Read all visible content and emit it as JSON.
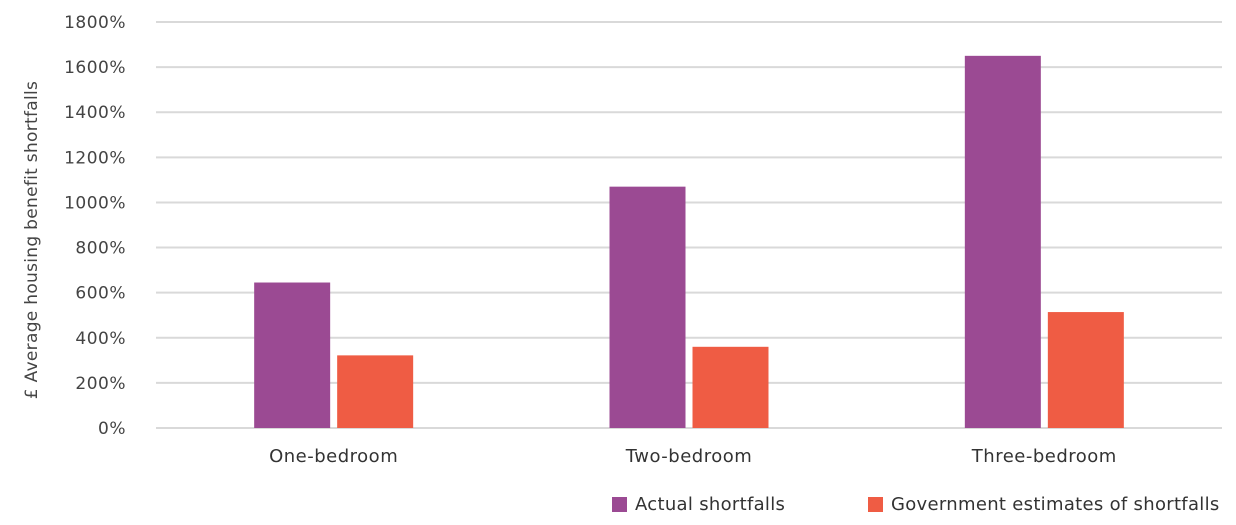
{
  "chart_data": {
    "type": "bar",
    "categories": [
      "One-bedroom",
      "Two-bedroom",
      "Three-bedroom"
    ],
    "series": [
      {
        "name": "Actual shortfalls",
        "values": [
          645,
          1070,
          1650
        ],
        "color": "#9b4a93"
      },
      {
        "name": "Government estimates of shortfalls",
        "values": [
          322,
          360,
          514
        ],
        "color": "#ef5c44"
      }
    ],
    "title": "",
    "xlabel": "",
    "ylabel": "£ Average housing benefit shortfalls",
    "ylim": [
      0,
      1800
    ],
    "yticks": [
      "0%",
      "200%",
      "400%",
      "600%",
      "800%",
      "1000%",
      "1200%",
      "1400%",
      "1600%",
      "1800%"
    ],
    "grid": true,
    "legend_position": "bottom-right"
  }
}
